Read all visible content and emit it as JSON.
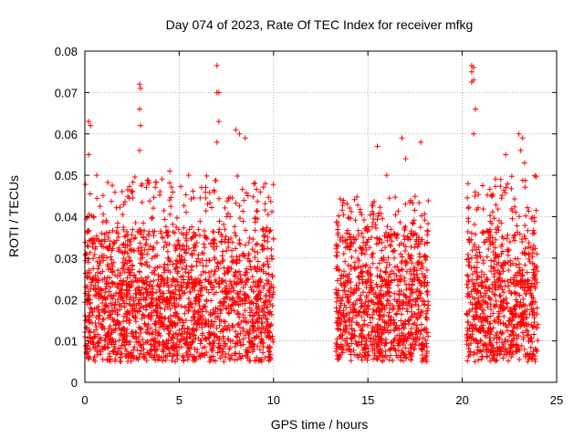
{
  "chart_data": {
    "type": "scatter",
    "title": "Day 074 of 2023, Rate Of TEC Index for receiver mfkg",
    "xlabel": "GPS time / hours",
    "ylabel": "ROTI / TECUs",
    "xlim": [
      0,
      25
    ],
    "ylim": [
      0,
      0.08
    ],
    "grid": true,
    "marker": "+",
    "color": "#ff0000",
    "x_ticks": [
      0,
      5,
      10,
      15,
      20,
      25
    ],
    "x_tick_labels": [
      "0",
      "5",
      "10",
      "15",
      "20",
      "25"
    ],
    "y_ticks": [
      0,
      0.01,
      0.02,
      0.03,
      0.04,
      0.05,
      0.06,
      0.07,
      0.08
    ],
    "y_tick_labels": [
      "0",
      "0.01",
      "0.02",
      "0.03",
      "0.04",
      "0.05",
      "0.06",
      "0.07",
      "0.08"
    ],
    "series": [
      {
        "name": "ROTI",
        "segments": [
          {
            "x_range": [
              0.0,
              10.0
            ],
            "typical_range": [
              0.005,
              0.025
            ],
            "peak": 0.05
          },
          {
            "x_range": [
              13.3,
              18.2
            ],
            "typical_range": [
              0.005,
              0.025
            ],
            "peak": 0.045
          },
          {
            "x_range": [
              20.2,
              24.0
            ],
            "typical_range": [
              0.005,
              0.025
            ],
            "peak": 0.05
          }
        ],
        "outliers": [
          {
            "x": 0.2,
            "y": 0.063
          },
          {
            "x": 0.3,
            "y": 0.062
          },
          {
            "x": 0.2,
            "y": 0.055
          },
          {
            "x": 2.9,
            "y": 0.072
          },
          {
            "x": 2.95,
            "y": 0.071
          },
          {
            "x": 2.9,
            "y": 0.066
          },
          {
            "x": 2.95,
            "y": 0.062
          },
          {
            "x": 2.9,
            "y": 0.056
          },
          {
            "x": 4.5,
            "y": 0.051
          },
          {
            "x": 5.5,
            "y": 0.05
          },
          {
            "x": 7.0,
            "y": 0.0765
          },
          {
            "x": 7.0,
            "y": 0.07
          },
          {
            "x": 7.1,
            "y": 0.07
          },
          {
            "x": 7.1,
            "y": 0.063
          },
          {
            "x": 7.0,
            "y": 0.058
          },
          {
            "x": 8.0,
            "y": 0.061
          },
          {
            "x": 8.2,
            "y": 0.06
          },
          {
            "x": 8.5,
            "y": 0.059
          },
          {
            "x": 15.5,
            "y": 0.057
          },
          {
            "x": 16.8,
            "y": 0.059
          },
          {
            "x": 17.8,
            "y": 0.058
          },
          {
            "x": 17.0,
            "y": 0.054
          },
          {
            "x": 16.0,
            "y": 0.05
          },
          {
            "x": 20.5,
            "y": 0.0765
          },
          {
            "x": 20.6,
            "y": 0.076
          },
          {
            "x": 20.5,
            "y": 0.075
          },
          {
            "x": 20.6,
            "y": 0.073
          },
          {
            "x": 20.5,
            "y": 0.0725
          },
          {
            "x": 20.7,
            "y": 0.066
          },
          {
            "x": 20.6,
            "y": 0.06
          },
          {
            "x": 23.0,
            "y": 0.06
          },
          {
            "x": 23.2,
            "y": 0.059
          },
          {
            "x": 23.1,
            "y": 0.056
          },
          {
            "x": 23.3,
            "y": 0.053
          },
          {
            "x": 22.3,
            "y": 0.055
          }
        ]
      }
    ]
  }
}
